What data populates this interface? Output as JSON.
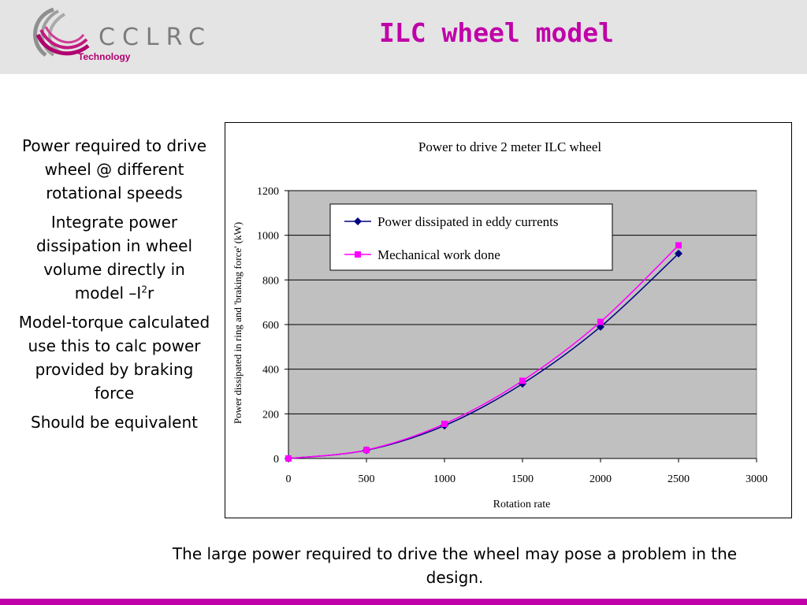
{
  "header": {
    "logo_text": "CCLRC",
    "logo_subtext": "Technology",
    "title": "ILC wheel model"
  },
  "bullets": {
    "b1": "Power required to drive wheel @ different rotational speeds",
    "b2_main": "Integrate power dissipation in wheel volume directly in model –I",
    "b2_sup": "2",
    "b2_tail": "r",
    "b3": "Model-torque calculated use this to calc power provided by braking force",
    "b4": "Should be equivalent"
  },
  "footer": {
    "text": "The large power required to drive the wheel may pose a problem in the design."
  },
  "colors": {
    "accent": "#c000a8",
    "header_bg": "#e4e4e4",
    "plot_bg": "#c0c0c0",
    "series_eddy": "#000080",
    "series_mech": "#ff00ff"
  },
  "chart_data": {
    "type": "line",
    "title": "Power to drive 2 meter ILC wheel",
    "xlabel": "Rotation rate",
    "ylabel": "Power dissipated in ring and 'braking force' (kW)",
    "xlim": [
      0,
      3000
    ],
    "ylim": [
      0,
      1200
    ],
    "xticks": [
      0,
      500,
      1000,
      1500,
      2000,
      2500,
      3000
    ],
    "yticks": [
      0,
      200,
      400,
      600,
      800,
      1000,
      1200
    ],
    "grid": "horizontal",
    "legend_position": "top-left inside plot",
    "series": [
      {
        "name": "Power dissipated in eddy currents",
        "marker": "diamond",
        "color": "#000080",
        "x": [
          0,
          500,
          1000,
          1500,
          2000,
          2500
        ],
        "y": [
          0,
          37,
          147,
          335,
          590,
          918
        ]
      },
      {
        "name": "Mechanical  work done",
        "marker": "square",
        "color": "#ff00ff",
        "x": [
          0,
          500,
          1000,
          1500,
          2000,
          2500
        ],
        "y": [
          0,
          38,
          155,
          348,
          612,
          955
        ]
      }
    ]
  }
}
